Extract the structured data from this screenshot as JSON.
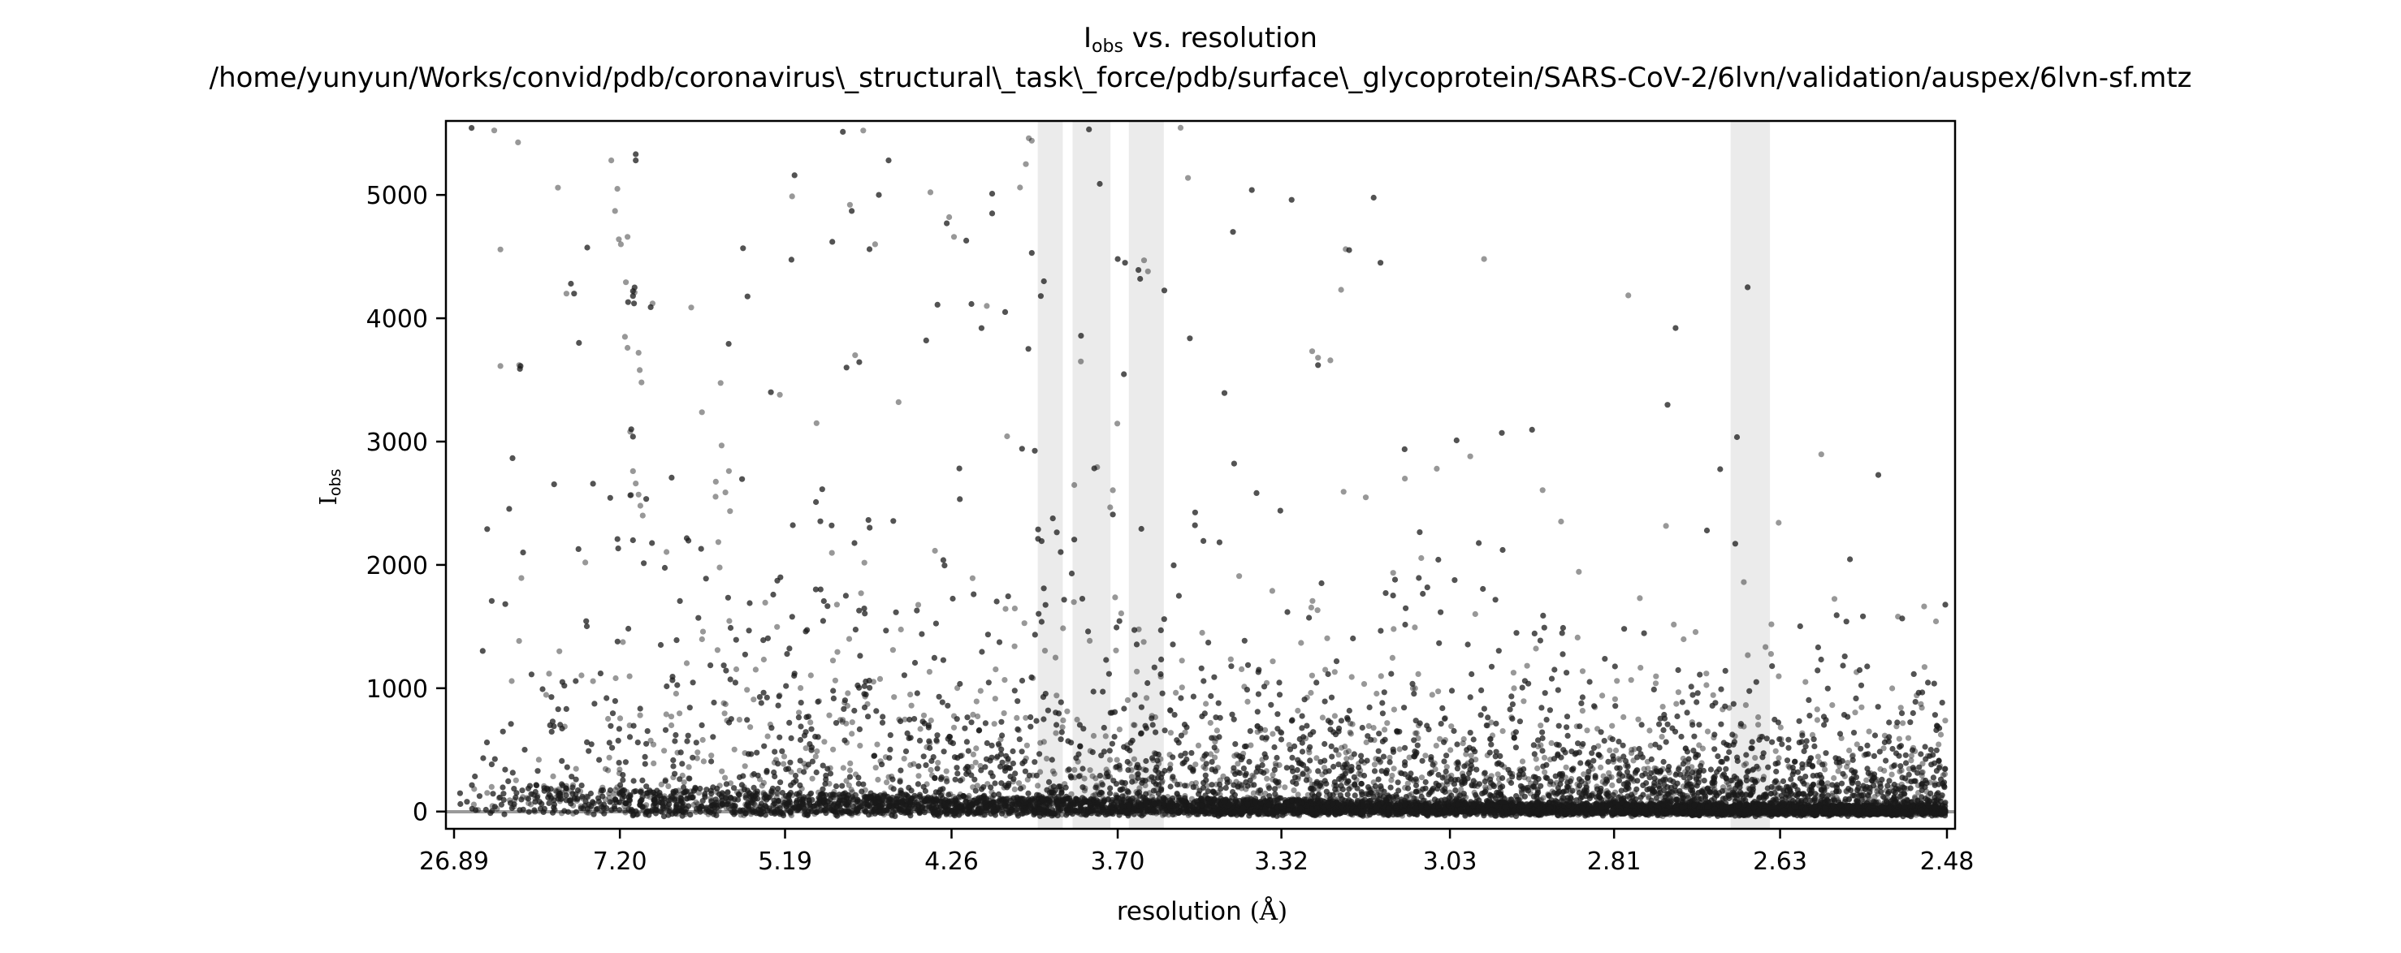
{
  "chart_data": {
    "type": "scatter",
    "title_main": "I",
    "title_sub": "obs",
    "title_rest": " vs. resolution",
    "subtitle": "/home/yunyun/Works/convid/pdb/coronavirus\\_structural\\_task\\_force/pdb/surface\\_glycoprotein/SARS-CoV-2/6lvn/validation/auspex/6lvn-sf.mtz",
    "ylabel_main": "I",
    "ylabel_sub": "obs",
    "xlabel_main": "resolution ",
    "xlabel_unit": "(Å)",
    "x_axis": "1/d^2 scale, labelled by resolution d in Å",
    "x_range_resolution": [
      26.89,
      2.48
    ],
    "ylim": [
      -140,
      5600
    ],
    "x_ticks": [
      "26.89",
      "7.20",
      "5.19",
      "4.26",
      "3.70",
      "3.32",
      "3.03",
      "2.81",
      "2.63",
      "2.48"
    ],
    "y_ticks": [
      0,
      1000,
      2000,
      3000,
      4000,
      5000
    ],
    "grid": false,
    "ice_ring_bands_resolution": [
      [
        3.94,
        3.86
      ],
      [
        3.83,
        3.72
      ],
      [
        3.67,
        3.58
      ],
      [
        2.68,
        2.64
      ]
    ],
    "point_color": "#1a1a1a",
    "band_color": "#ebebeb",
    "baseline_color": "#9a9a9a",
    "point_count": 9000,
    "high_points": [
      [
        6.9,
        5330
      ],
      [
        6.9,
        5280
      ],
      [
        7.38,
        5280
      ],
      [
        7.25,
        5050
      ],
      [
        7.3,
        4870
      ],
      [
        8.35,
        4200
      ],
      [
        8.45,
        4280
      ],
      [
        8.6,
        4200
      ],
      [
        7.22,
        4640
      ],
      [
        7.18,
        4600
      ],
      [
        7.05,
        4660
      ],
      [
        6.95,
        4220
      ],
      [
        6.92,
        4250
      ],
      [
        6.93,
        4120
      ],
      [
        7.1,
        3850
      ],
      [
        7.05,
        3760
      ],
      [
        6.85,
        3720
      ],
      [
        6.83,
        3580
      ],
      [
        6.8,
        3480
      ],
      [
        10.9,
        3620
      ],
      [
        10.85,
        3590
      ],
      [
        8.2,
        3800
      ],
      [
        7.0,
        3080
      ],
      [
        6.98,
        3100
      ],
      [
        6.95,
        2760
      ],
      [
        6.9,
        2660
      ],
      [
        6.85,
        2570
      ],
      [
        6.82,
        2480
      ],
      [
        6.78,
        2400
      ],
      [
        6.95,
        2200
      ],
      [
        6.65,
        4090
      ],
      [
        6.62,
        4120
      ],
      [
        6.95,
        4180
      ],
      [
        6.92,
        4210
      ],
      [
        4.76,
        4920
      ],
      [
        4.75,
        4870
      ],
      [
        4.55,
        5280
      ],
      [
        4.65,
        4560
      ],
      [
        4.62,
        4600
      ],
      [
        4.28,
        4770
      ],
      [
        4.27,
        4820
      ],
      [
        4.25,
        4660
      ],
      [
        4.2,
        4630
      ],
      [
        4.1,
        4850
      ],
      [
        4.1,
        5010
      ],
      [
        4.0,
        5060
      ],
      [
        3.97,
        5460
      ],
      [
        3.96,
        5440
      ],
      [
        3.98,
        5250
      ],
      [
        3.96,
        4530
      ],
      [
        3.92,
        4300
      ],
      [
        3.93,
        4180
      ],
      [
        3.75,
        5090
      ],
      [
        3.7,
        4480
      ],
      [
        3.68,
        4450
      ],
      [
        3.63,
        4470
      ],
      [
        3.62,
        4380
      ],
      [
        3.64,
        4320
      ],
      [
        3.42,
        4700
      ],
      [
        3.38,
        5040
      ],
      [
        3.3,
        4960
      ],
      [
        3.2,
        4560
      ],
      [
        3.14,
        4450
      ],
      [
        2.98,
        4480
      ],
      [
        3.25,
        3680
      ],
      [
        3.25,
        3620
      ],
      [
        3.02,
        3010
      ],
      [
        3.05,
        2780
      ],
      [
        3.1,
        2700
      ],
      [
        3.0,
        2880
      ],
      [
        4.12,
        4100
      ],
      [
        4.14,
        3920
      ],
      [
        4.32,
        4110
      ],
      [
        4.37,
        3820
      ],
      [
        4.5,
        3320
      ],
      [
        5.23,
        3380
      ],
      [
        5.3,
        3400
      ],
      [
        4.73,
        3700
      ],
      [
        4.78,
        3600
      ]
    ]
  }
}
